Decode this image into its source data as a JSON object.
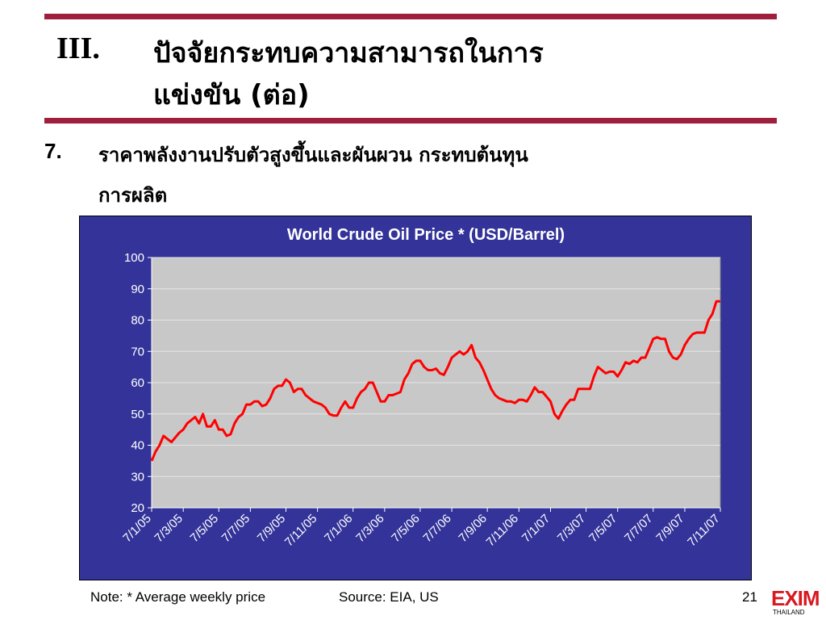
{
  "header": {
    "number": "III.",
    "title_lines": [
      "ปัจจัยกระทบความสามารถในการ",
      "แข่งขัน (ต่อ)"
    ]
  },
  "point": {
    "number": "7.",
    "lines": [
      "ราคาพลังงานปรับตัวสูงขึ้นและผันผวน กระทบต้นทุน",
      "การผลิต"
    ]
  },
  "chart_data": {
    "type": "line",
    "title": "World Crude Oil Price * (USD/Barrel)",
    "categories": [
      "7/1/05",
      null,
      null,
      null,
      null,
      null,
      null,
      null,
      "7/3/05",
      null,
      null,
      null,
      null,
      null,
      null,
      null,
      null,
      "7/5/05",
      null,
      null,
      null,
      null,
      null,
      null,
      null,
      "7/7/05",
      null,
      null,
      null,
      null,
      null,
      null,
      null,
      null,
      "7/9/05",
      null,
      null,
      null,
      null,
      null,
      null,
      null,
      "7/11/05",
      null,
      null,
      null,
      null,
      null,
      null,
      null,
      null,
      "7/1/06",
      null,
      null,
      null,
      null,
      null,
      null,
      null,
      "7/3/06",
      null,
      null,
      null,
      null,
      null,
      null,
      null,
      null,
      "7/5/06",
      null,
      null,
      null,
      null,
      null,
      null,
      null,
      "7/7/06",
      null,
      null,
      null,
      null,
      null,
      null,
      null,
      null,
      "7/9/06",
      null,
      null,
      null,
      null,
      null,
      null,
      null,
      "7/11/06",
      null,
      null,
      null,
      null,
      null,
      null,
      null,
      "7/1/07",
      null,
      null,
      null,
      null,
      null,
      null,
      null,
      null,
      "7/3/07",
      null,
      null,
      null,
      null,
      null,
      null,
      null,
      "7/5/07",
      null,
      null,
      null,
      null,
      null,
      null,
      null,
      null,
      "7/7/07",
      null,
      null,
      null,
      null,
      null,
      null,
      null,
      "7/9/07",
      null,
      null,
      null,
      null,
      null,
      null,
      null,
      null,
      "7/11/07"
    ],
    "series": [
      {
        "name": "World Crude Oil Price",
        "color": "#ff0000",
        "values": [
          35,
          38,
          40,
          43,
          42,
          41,
          42.5,
          44,
          45,
          47,
          48,
          49,
          47,
          50,
          46,
          46,
          48,
          45,
          45,
          43,
          43.5,
          47,
          49,
          50,
          53,
          53,
          54,
          54,
          52.5,
          53,
          55,
          58,
          59,
          59,
          61,
          60,
          57,
          58,
          58,
          56,
          55,
          54,
          53.5,
          53,
          52,
          50,
          49.5,
          49.5,
          52,
          54,
          52,
          52,
          55,
          57,
          58,
          60,
          60,
          57,
          54,
          54,
          56,
          56,
          56.5,
          57,
          61,
          63,
          66,
          67,
          67,
          65,
          64,
          64,
          64.5,
          63,
          62.5,
          65,
          68,
          69,
          70,
          69,
          70,
          72,
          68,
          66.5,
          64,
          61,
          58,
          56,
          55,
          54.5,
          54,
          54,
          53.5,
          54.5,
          54.5,
          54,
          56,
          58.5,
          57,
          57,
          55.5,
          54,
          50,
          48.5,
          51,
          53,
          54.5,
          54.5,
          58,
          58,
          58,
          58,
          62,
          65,
          64,
          63,
          63.5,
          63.5,
          62,
          64,
          66.5,
          66,
          67,
          66.5,
          68,
          68,
          71,
          74,
          74.5,
          74,
          74,
          70,
          68,
          67.5,
          69,
          72,
          74,
          75.5,
          76,
          76,
          76,
          80,
          82,
          86,
          86
        ]
      }
    ],
    "ylim": [
      20,
      100
    ],
    "yticks": [
      20,
      30,
      40,
      50,
      60,
      70,
      80,
      90,
      100
    ],
    "grid": true
  },
  "footer": {
    "note": "Note: * Average weekly price",
    "source": "Source: EIA, US",
    "page": "21",
    "logo": "EXIM",
    "logo_sub": "THAILAND"
  }
}
